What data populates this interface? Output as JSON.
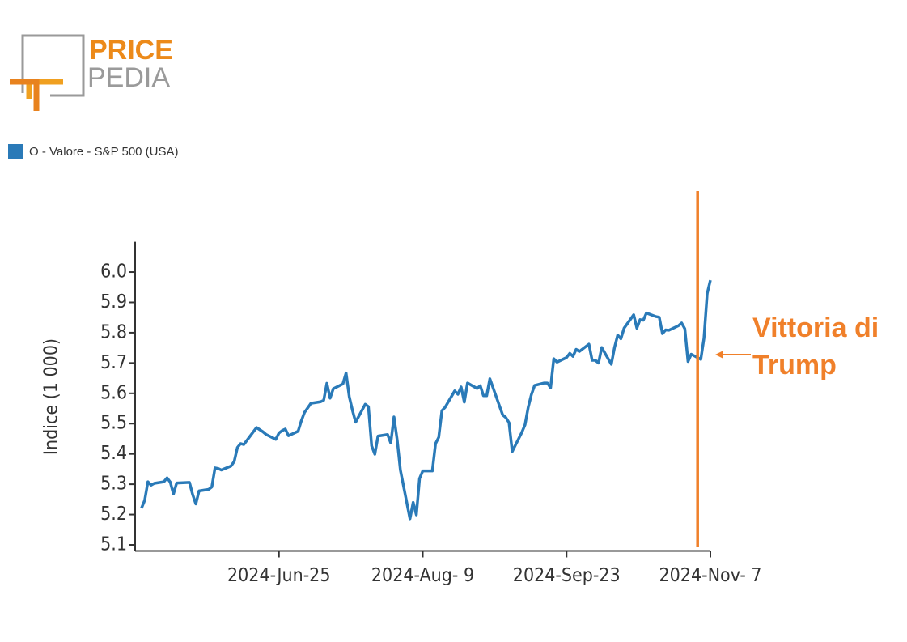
{
  "logo": {
    "top": "PRICE",
    "bottom": "PEDIA"
  },
  "chart_data": {
    "type": "line",
    "y_label": "Indice (1 000)",
    "x": [
      "2024-05-13",
      "2024-05-14",
      "2024-05-15",
      "2024-05-16",
      "2024-05-17",
      "2024-05-20",
      "2024-05-21",
      "2024-05-22",
      "2024-05-23",
      "2024-05-24",
      "2024-05-28",
      "2024-05-29",
      "2024-05-30",
      "2024-05-31",
      "2024-06-03",
      "2024-06-04",
      "2024-06-05",
      "2024-06-06",
      "2024-06-07",
      "2024-06-10",
      "2024-06-11",
      "2024-06-12",
      "2024-06-13",
      "2024-06-14",
      "2024-06-17",
      "2024-06-18",
      "2024-06-20",
      "2024-06-21",
      "2024-06-24",
      "2024-06-25",
      "2024-06-26",
      "2024-06-27",
      "2024-06-28",
      "2024-07-01",
      "2024-07-02",
      "2024-07-03",
      "2024-07-05",
      "2024-07-08",
      "2024-07-09",
      "2024-07-10",
      "2024-07-11",
      "2024-07-12",
      "2024-07-15",
      "2024-07-16",
      "2024-07-17",
      "2024-07-18",
      "2024-07-19",
      "2024-07-22",
      "2024-07-23",
      "2024-07-24",
      "2024-07-25",
      "2024-07-26",
      "2024-07-29",
      "2024-07-30",
      "2024-07-31",
      "2024-08-01",
      "2024-08-02",
      "2024-08-05",
      "2024-08-06",
      "2024-08-07",
      "2024-08-08",
      "2024-08-09",
      "2024-08-12",
      "2024-08-13",
      "2024-08-14",
      "2024-08-15",
      "2024-08-16",
      "2024-08-19",
      "2024-08-20",
      "2024-08-21",
      "2024-08-22",
      "2024-08-23",
      "2024-08-26",
      "2024-08-27",
      "2024-08-28",
      "2024-08-29",
      "2024-08-30",
      "2024-09-03",
      "2024-09-04",
      "2024-09-05",
      "2024-09-06",
      "2024-09-09",
      "2024-09-10",
      "2024-09-11",
      "2024-09-12",
      "2024-09-13",
      "2024-09-16",
      "2024-09-17",
      "2024-09-18",
      "2024-09-19",
      "2024-09-20",
      "2024-09-23",
      "2024-09-24",
      "2024-09-25",
      "2024-09-26",
      "2024-09-27",
      "2024-09-30",
      "2024-10-01",
      "2024-10-02",
      "2024-10-03",
      "2024-10-04",
      "2024-10-07",
      "2024-10-08",
      "2024-10-09",
      "2024-10-10",
      "2024-10-11",
      "2024-10-14",
      "2024-10-15",
      "2024-10-16",
      "2024-10-17",
      "2024-10-18",
      "2024-10-21",
      "2024-10-22",
      "2024-10-23",
      "2024-10-24",
      "2024-10-25",
      "2024-10-28",
      "2024-10-29",
      "2024-10-30",
      "2024-10-31",
      "2024-11-01",
      "2024-11-04",
      "2024-11-05",
      "2024-11-06",
      "2024-11-07"
    ],
    "series": [
      {
        "name": "O - Valore - S&P 500 (USA)",
        "color": "#2a7ab8",
        "values": [
          5.221,
          5.247,
          5.308,
          5.297,
          5.303,
          5.308,
          5.321,
          5.307,
          5.268,
          5.304,
          5.306,
          5.266,
          5.235,
          5.278,
          5.283,
          5.291,
          5.354,
          5.352,
          5.347,
          5.36,
          5.375,
          5.421,
          5.434,
          5.431,
          5.473,
          5.487,
          5.473,
          5.464,
          5.448,
          5.469,
          5.477,
          5.482,
          5.46,
          5.475,
          5.509,
          5.537,
          5.567,
          5.572,
          5.577,
          5.633,
          5.584,
          5.615,
          5.631,
          5.667,
          5.589,
          5.544,
          5.505,
          5.564,
          5.556,
          5.427,
          5.399,
          5.459,
          5.464,
          5.436,
          5.522,
          5.446,
          5.347,
          5.186,
          5.24,
          5.199,
          5.319,
          5.344,
          5.344,
          5.434,
          5.455,
          5.543,
          5.554,
          5.608,
          5.597,
          5.621,
          5.571,
          5.634,
          5.616,
          5.625,
          5.592,
          5.592,
          5.648,
          5.529,
          5.52,
          5.503,
          5.408,
          5.471,
          5.496,
          5.554,
          5.596,
          5.626,
          5.634,
          5.634,
          5.618,
          5.714,
          5.703,
          5.718,
          5.732,
          5.722,
          5.745,
          5.738,
          5.762,
          5.709,
          5.709,
          5.7,
          5.751,
          5.696,
          5.751,
          5.792,
          5.78,
          5.815,
          5.859,
          5.815,
          5.843,
          5.841,
          5.865,
          5.853,
          5.851,
          5.797,
          5.809,
          5.808,
          5.823,
          5.832,
          5.813,
          5.705,
          5.729,
          5.712,
          5.782,
          5.929,
          5.973
        ]
      }
    ],
    "xlim": [
      "2024-05-11",
      "2024-11-07"
    ],
    "xticks": [
      {
        "value": "2024-06-25",
        "label": "2024-Jun-25"
      },
      {
        "value": "2024-08-09",
        "label": "2024-Aug- 9"
      },
      {
        "value": "2024-09-23",
        "label": "2024-Sep-23"
      },
      {
        "value": "2024-11-07",
        "label": "2024-Nov- 7"
      }
    ],
    "ylim": [
      5.08,
      6.1
    ],
    "yticks": [
      5.1,
      5.2,
      5.3,
      5.4,
      5.5,
      5.6,
      5.7,
      5.8,
      5.9,
      {
        "value": 6,
        "label": "6.0"
      }
    ],
    "annotation": {
      "text": "Vittoria di Trump",
      "x": "2024-11-03",
      "color": "#f0802a"
    },
    "legend": "top-left"
  }
}
